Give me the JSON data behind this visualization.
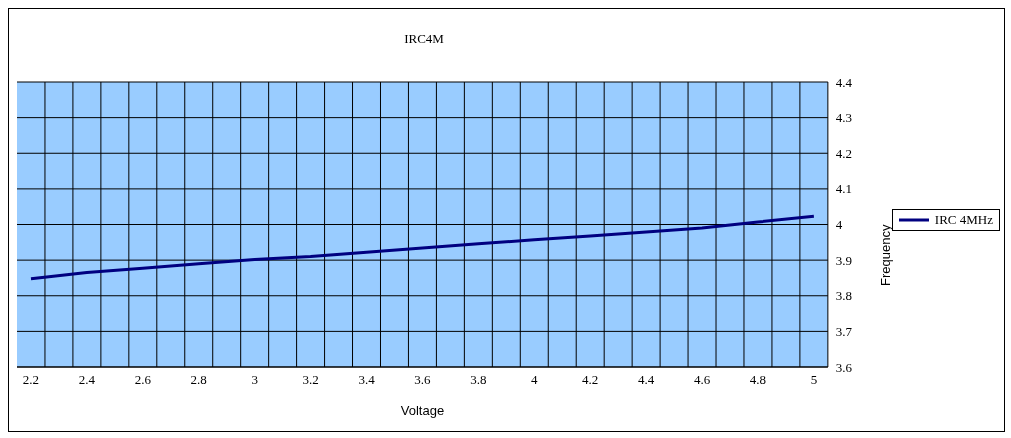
{
  "chart_data": {
    "type": "line",
    "title": "IRC4M",
    "xlabel": "Voltage",
    "ylabel": "Frequency",
    "x": [
      2.2,
      2.4,
      2.6,
      2.8,
      3.0,
      3.2,
      3.4,
      3.6,
      3.8,
      4.0,
      4.2,
      4.4,
      4.6,
      4.8,
      5.0
    ],
    "series": [
      {
        "name": "IRC 4MHz",
        "color": "#000080",
        "values": [
          3.848,
          3.865,
          3.877,
          3.89,
          3.902,
          3.91,
          3.922,
          3.934,
          3.946,
          3.957,
          3.968,
          3.979,
          3.99,
          4.007,
          4.023
        ]
      }
    ],
    "xlim": [
      2.15,
      5.05
    ],
    "xticks": [
      2.2,
      {
        "value": 2.25,
        "label": null
      },
      2.4,
      {
        "value": 2.35,
        "label": null
      },
      {
        "value": 2.45,
        "label": null
      },
      {
        "value": 2.55,
        "label": null
      },
      2.6,
      {
        "value": 2.65,
        "label": null
      },
      {
        "value": 2.75,
        "label": null
      },
      2.8,
      {
        "value": 2.85,
        "label": null
      },
      {
        "value": 2.95,
        "label": null
      },
      3,
      {
        "value": 3.05,
        "label": null
      },
      {
        "value": 3.15,
        "label": null
      },
      3.2,
      {
        "value": 3.25,
        "label": null
      },
      {
        "value": 3.35,
        "label": null
      },
      3.4,
      {
        "value": 3.45,
        "label": null
      },
      {
        "value": 3.55,
        "label": null
      },
      3.6,
      {
        "value": 3.65,
        "label": null
      },
      {
        "value": 3.75,
        "label": null
      },
      3.8,
      {
        "value": 3.85,
        "label": null
      },
      {
        "value": 3.95,
        "label": null
      },
      4,
      {
        "value": 4.05,
        "label": null
      },
      {
        "value": 4.15,
        "label": null
      },
      4.2,
      {
        "value": 4.25,
        "label": null
      },
      {
        "value": 4.35,
        "label": null
      },
      4.4,
      {
        "value": 4.45,
        "label": null
      },
      {
        "value": 4.55,
        "label": null
      },
      4.6,
      {
        "value": 4.65,
        "label": null
      },
      {
        "value": 4.75,
        "label": null
      },
      4.8,
      {
        "value": 4.85,
        "label": null
      },
      {
        "value": 4.95,
        "label": null
      },
      5
    ],
    "ylim": [
      3.6,
      4.4
    ],
    "yticks": [
      3.6,
      3.7,
      3.8,
      3.9,
      4,
      4.1,
      4.2,
      4.3,
      4.4
    ],
    "grid": true,
    "legend": "right",
    "marker": "none",
    "line_style": "solid"
  }
}
